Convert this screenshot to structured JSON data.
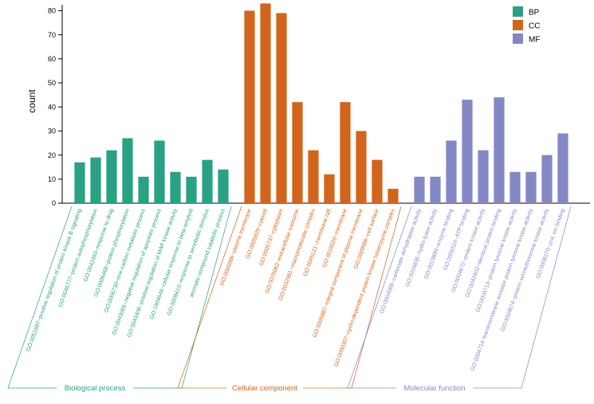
{
  "background": "#ffffff",
  "legend": {
    "items": [
      {
        "label": "BP",
        "color": "#29a185"
      },
      {
        "label": "CC",
        "color": "#d2641c"
      },
      {
        "label": "MF",
        "color": "#8388c5"
      }
    ]
  },
  "chart_data": {
    "type": "bar",
    "title": "",
    "xlabel": "",
    "ylabel": "count",
    "ylim": [
      0,
      85
    ],
    "yticks": [
      0,
      10,
      20,
      30,
      40,
      50,
      60,
      70,
      80
    ],
    "grid": false,
    "legend_position": "top-right",
    "groups": [
      {
        "name": "BP",
        "group_label": "Biological process",
        "color": "#29a185",
        "categories": [
          "GO:0051897~positive regulation of protein kinase B signaling",
          "GO:0046777~protein autophosphorylation",
          "GO:0042493~response to drug",
          "GO:0006468~protein phosphorylation",
          "GO:0006730~one-carbon metabolic process",
          "GO:0043066~negative regulation of apoptotic process",
          "GO:0043406~positive regulation of MAP kinase activity",
          "GO:1904646~cellular response to beta-amyloid",
          "GO:0009410~response to xenobiotic stimulus",
          "aromatic compound catabolic process"
        ],
        "values": [
          17,
          19,
          22,
          27,
          11,
          26,
          13,
          11,
          18,
          14
        ]
      },
      {
        "name": "CC",
        "group_label": "Cellular component",
        "color": "#d2641c",
        "categories": [
          "GO:0005886~plasma membrane",
          "GO:0005829~cytosol",
          "GO:0005737~cytoplasm",
          "GO:0070062~extracellular exosome",
          "GO:0032991~macromolecular complex",
          "GO:0045121~membrane raft",
          "GO:0016020~membrane",
          "GO:0005887~integral component of plasma membrane",
          "GO:0009986~cell surface",
          "GO:0000307~cyclin-dependent protein kinase holoenzyme complex"
        ],
        "values": [
          80,
          83,
          79,
          42,
          22,
          12,
          42,
          30,
          18,
          6
        ]
      },
      {
        "name": "MF",
        "group_label": "Molecular function",
        "color": "#8388c5",
        "categories": [
          "GO:0004089~carbonate dehydratase activity",
          "GO:0016836~hydro-lyase activity",
          "GO:0019899~enzyme binding",
          "GO:0005524~ATP binding",
          "GO:0004672~protein kinase activity",
          "GO:0042802~identical protein binding",
          "GO:0004713~protein tyrosine kinase activity",
          "GO:0004714~transmembrane receptor protein tyrosine kinase activity",
          "GO:0004674~protein serine/threonine kinase activity",
          "GO:0008270~zinc ion binding"
        ],
        "values": [
          11,
          11,
          26,
          43,
          22,
          44,
          13,
          13,
          20,
          29
        ]
      }
    ]
  }
}
